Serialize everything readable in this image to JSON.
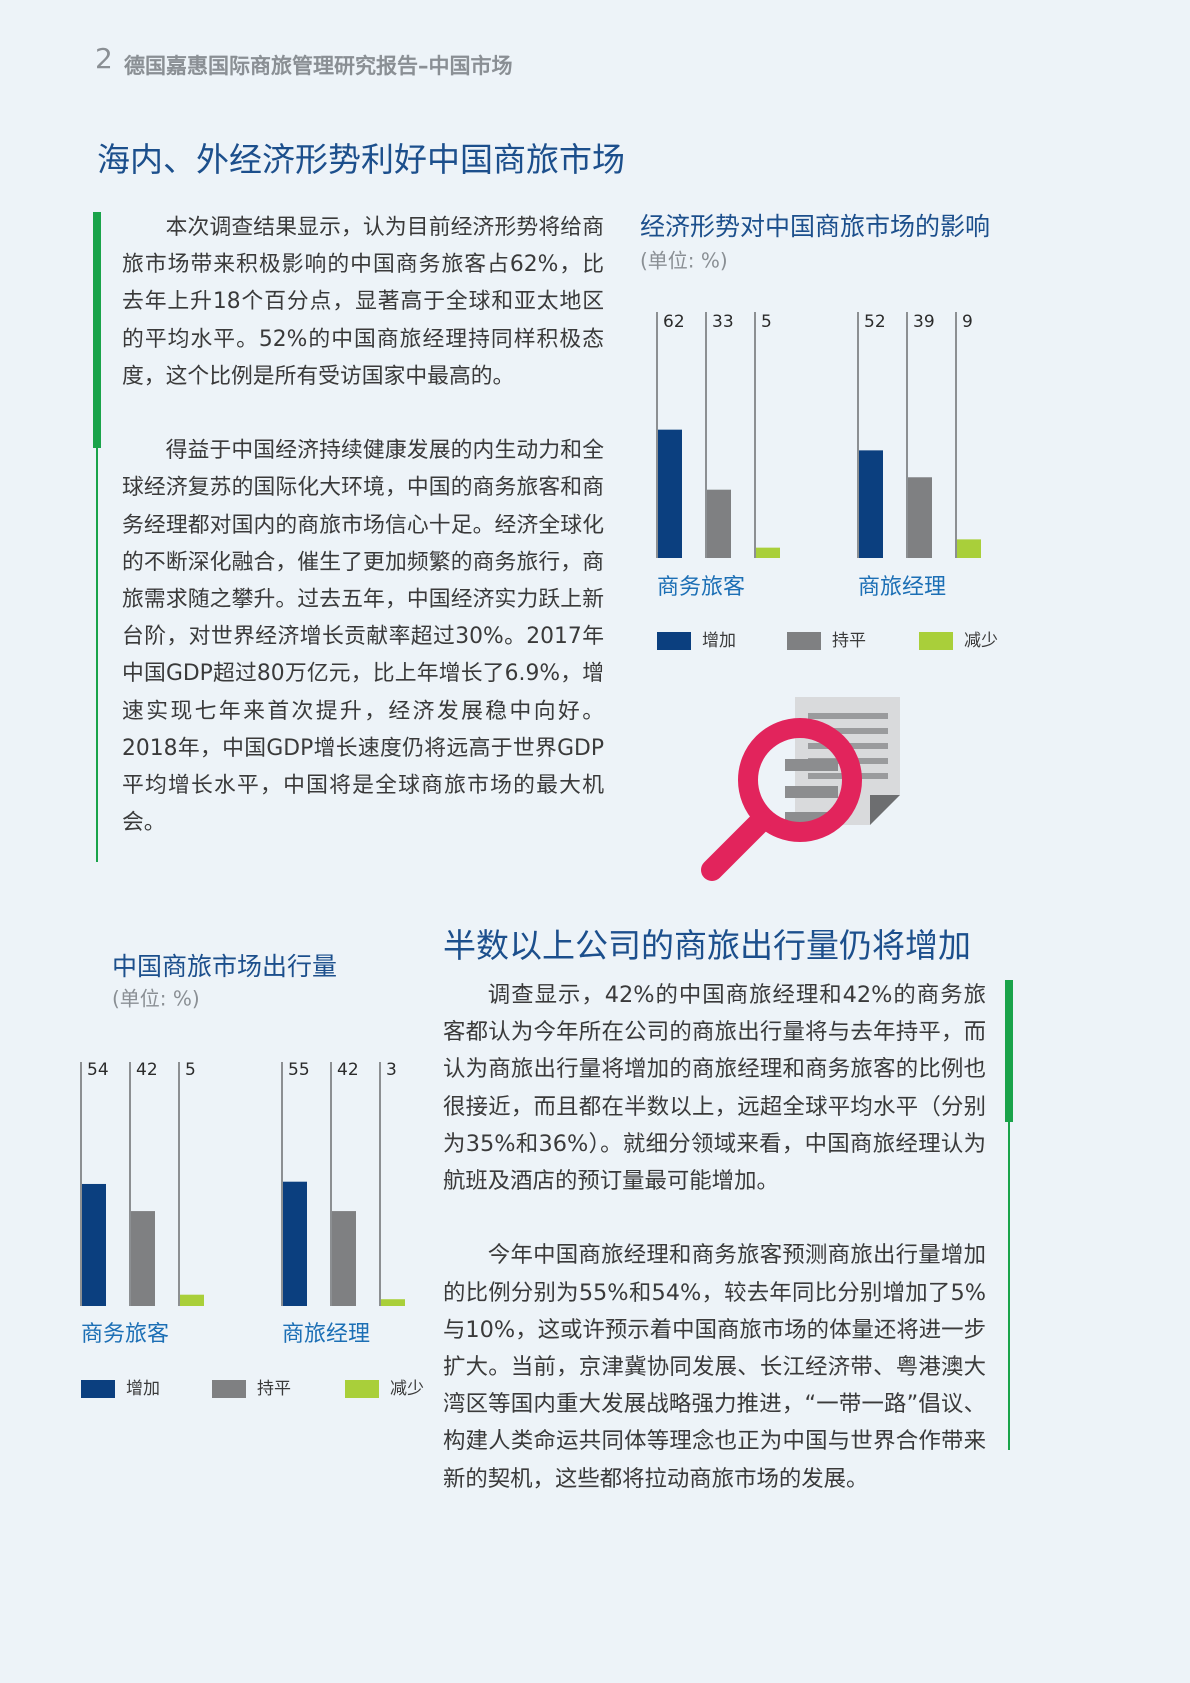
{
  "header": {
    "page_number": "2",
    "title": "德国嘉惠国际商旅管理研究报告–中国市场"
  },
  "sections": [
    {
      "heading": "海内、外经济形势利好中国商旅市场",
      "paragraphs": [
        "本次调查结果显示，认为目前经济形势将给商旅市场带来积极影响的中国商务旅客占62%，比去年上升18个百分点，显著高于全球和亚太地区的平均水平。52%的中国商旅经理持同样积极态度，这个比例是所有受访国家中最高的。",
        "得益于中国经济持续健康发展的内生动力和全球经济复苏的国际化大环境，中国的商务旅客和商务经理都对国内的商旅市场信心十足。经济全球化的不断深化融合，催生了更加频繁的商务旅行，商旅需求随之攀升。过去五年，中国经济实力跃上新台阶，对世界经济增长贡献率超过30%。2017年中国GDP超过80万亿元，比上年增长了6.9%，增速实现七年来首次提升，经济发展稳中向好。2018年，中国GDP增长速度仍将远高于世界GDP平均增长水平，中国将是全球商旅市场的最大机会。"
      ]
    },
    {
      "heading": "半数以上公司的商旅出行量仍将增加",
      "paragraphs": [
        "调查显示，42%的中国商旅经理和42%的商务旅客都认为今年所在公司的商旅出行量将与去年持平，而认为商旅出行量将增加的商旅经理和商务旅客的比例也很接近，而且都在半数以上，远超全球平均水平（分别为35%和36%）。就细分领域来看，中国商旅经理认为航班及酒店的预订量最可能增加。",
        "今年中国商旅经理和商务旅客预测商旅出行量增加的比例分别为55%和54%，较去年同比分别增加了5%与10%，这或许预示着中国商旅市场的体量还将进一步扩大。当前，京津冀协同发展、长江经济带、粤港澳大湾区等国内重大发展战略强力推进，“一带一路”倡议、构建人类命运共同体等理念也正为中国与世界合作带来新的契机，这些都将拉动商旅市场的发展。"
      ]
    }
  ],
  "chart_data": [
    {
      "type": "bar",
      "title": "经济形势对中国商旅市场的影响",
      "subtitle": "(单位: %)",
      "categories": [
        "商务旅客",
        "商旅经理"
      ],
      "series": [
        {
          "name": "增加",
          "color": "#0b3f7f",
          "values": [
            62,
            52
          ]
        },
        {
          "name": "持平",
          "color": "#7f8082",
          "values": [
            33,
            39
          ]
        },
        {
          "name": "减少",
          "color": "#a9cf3a",
          "values": [
            5,
            9
          ]
        }
      ]
    },
    {
      "type": "bar",
      "title": "中国商旅市场出行量",
      "subtitle": "(单位: %)",
      "categories": [
        "商务旅客",
        "商旅经理"
      ],
      "series": [
        {
          "name": "增加",
          "color": "#0b3f7f",
          "values": [
            54,
            55
          ]
        },
        {
          "name": "持平",
          "color": "#7f8082",
          "values": [
            42,
            42
          ]
        },
        {
          "name": "减少",
          "color": "#a9cf3a",
          "values": [
            5,
            3
          ]
        }
      ]
    }
  ]
}
